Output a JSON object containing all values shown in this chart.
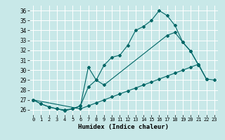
{
  "xlabel": "Humidex (Indice chaleur)",
  "bg_color": "#c8e8e8",
  "grid_color": "#ffffff",
  "line_color": "#006666",
  "xlim": [
    -0.5,
    23.5
  ],
  "ylim": [
    25.5,
    36.5
  ],
  "xticks": [
    0,
    1,
    2,
    3,
    4,
    5,
    6,
    7,
    8,
    9,
    10,
    11,
    12,
    13,
    14,
    15,
    16,
    17,
    18,
    19,
    20,
    21,
    22,
    23
  ],
  "yticks": [
    26,
    27,
    28,
    29,
    30,
    31,
    32,
    33,
    34,
    35,
    36
  ],
  "series1_x": [
    0,
    1,
    2,
    3,
    4,
    5,
    6,
    7,
    8,
    9,
    10,
    11,
    12,
    13,
    14,
    15,
    16,
    17,
    18,
    19,
    20,
    21
  ],
  "series1_y": [
    27.0,
    26.6,
    26.3,
    26.1,
    26.0,
    26.1,
    26.4,
    28.3,
    29.0,
    30.5,
    31.3,
    31.5,
    32.5,
    34.0,
    34.4,
    35.0,
    36.0,
    35.5,
    34.5,
    32.8,
    31.9,
    30.5
  ],
  "series2_x": [
    0,
    1,
    2,
    3,
    4,
    5,
    6,
    7,
    8,
    9,
    17,
    18,
    19,
    20,
    21,
    22,
    23
  ],
  "series2_y": [
    27.0,
    26.6,
    26.3,
    26.1,
    25.9,
    26.1,
    26.4,
    30.3,
    29.0,
    28.5,
    33.5,
    33.8,
    32.8,
    31.9,
    30.5,
    29.1,
    29.0
  ],
  "series3_x": [
    0,
    6,
    7,
    8,
    9,
    10,
    11,
    12,
    13,
    14,
    15,
    16,
    17,
    18,
    19,
    20,
    21,
    22
  ],
  "series3_y": [
    27.0,
    26.1,
    26.4,
    26.7,
    27.0,
    27.3,
    27.6,
    27.9,
    28.2,
    28.5,
    28.8,
    29.1,
    29.4,
    29.7,
    30.0,
    30.3,
    30.6,
    29.1
  ]
}
